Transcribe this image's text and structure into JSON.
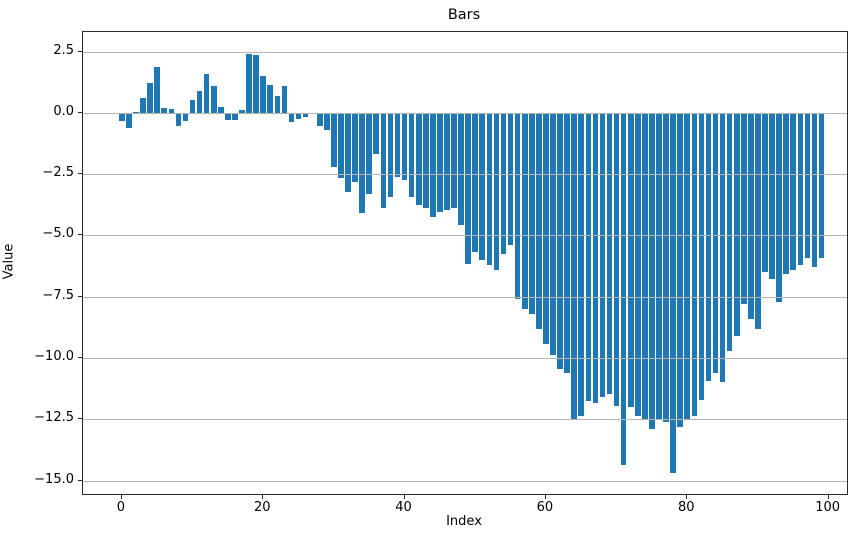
{
  "chart_data": {
    "type": "bar",
    "title": "Bars",
    "xlabel": "Index",
    "ylabel": "Value",
    "bar_color": "#1f77b4",
    "grid": true,
    "grid_color": "#b6b6b6",
    "legend": "none",
    "xlim": [
      -5.5,
      102.6
    ],
    "ylim": [
      -15.55,
      3.3
    ],
    "x_ticks": [
      0,
      20,
      40,
      60,
      80,
      100
    ],
    "y_ticks": [
      2.5,
      0.0,
      -2.5,
      -5.0,
      -7.5,
      -10.0,
      -12.5,
      -15.0
    ],
    "x": [
      0,
      1,
      2,
      3,
      4,
      5,
      6,
      7,
      8,
      9,
      10,
      11,
      12,
      13,
      14,
      15,
      16,
      17,
      18,
      19,
      20,
      21,
      22,
      23,
      24,
      25,
      26,
      27,
      28,
      29,
      30,
      31,
      32,
      33,
      34,
      35,
      36,
      37,
      38,
      39,
      40,
      41,
      42,
      43,
      44,
      45,
      46,
      47,
      48,
      49,
      50,
      51,
      52,
      53,
      54,
      55,
      56,
      57,
      58,
      59,
      60,
      61,
      62,
      63,
      64,
      65,
      66,
      67,
      68,
      69,
      70,
      71,
      72,
      73,
      74,
      75,
      76,
      77,
      78,
      79,
      80,
      81,
      82,
      83,
      84,
      85,
      86,
      87,
      88,
      89,
      90,
      91,
      92,
      93,
      94,
      95,
      96,
      97,
      98,
      99
    ],
    "values": [
      -0.35,
      -0.6,
      0.02,
      0.6,
      1.22,
      1.86,
      0.2,
      0.14,
      -0.55,
      -0.35,
      0.52,
      0.9,
      1.58,
      1.1,
      0.22,
      -0.3,
      -0.3,
      0.11,
      2.42,
      2.35,
      1.5,
      1.12,
      0.68,
      1.1,
      -0.39,
      -0.27,
      -0.18,
      -0.05,
      -0.55,
      -0.68,
      -2.2,
      -2.66,
      -3.21,
      -2.83,
      -4.1,
      -3.31,
      -1.68,
      -3.89,
      -3.42,
      -2.6,
      -2.73,
      -3.42,
      -3.76,
      -3.89,
      -4.24,
      -4.03,
      -3.97,
      -3.9,
      -4.58,
      -6.15,
      -5.67,
      -6.01,
      -6.22,
      -6.42,
      -5.74,
      -5.4,
      -7.6,
      -8.0,
      -8.2,
      -8.8,
      -9.43,
      -9.88,
      -10.45,
      -10.6,
      -12.55,
      -12.36,
      -11.75,
      -11.85,
      -11.6,
      -11.45,
      -11.95,
      -14.35,
      -12.0,
      -12.35,
      -12.55,
      -12.9,
      -12.55,
      -12.6,
      -14.7,
      -12.8,
      -12.55,
      -12.35,
      -11.7,
      -10.95,
      -10.6,
      -11.0,
      -9.7,
      -9.1,
      -7.8,
      -8.4,
      -8.8,
      -6.5,
      -6.76,
      -7.72,
      -6.56,
      -6.42,
      -6.22,
      -5.94,
      -6.29,
      -5.94
    ]
  }
}
